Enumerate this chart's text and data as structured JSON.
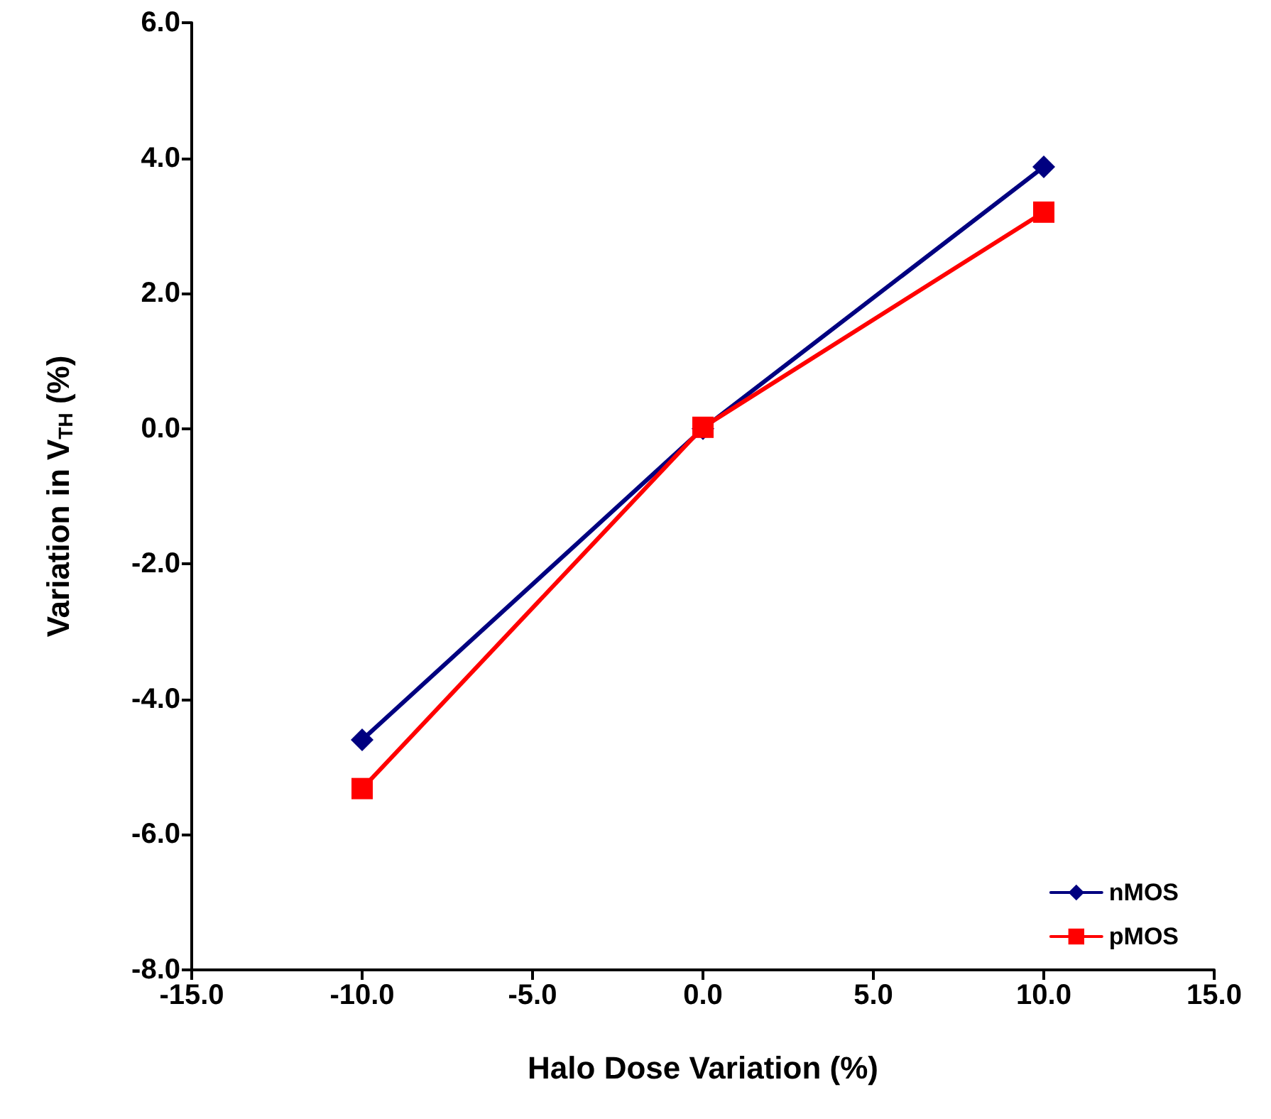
{
  "chart_data": {
    "type": "line",
    "xlabel": "Halo Dose Variation (%)",
    "ylabel": "Variation in V$_{TH}$ (%)",
    "xlim": [
      -15,
      15
    ],
    "xticks": [
      {
        "value": -15,
        "label": "-15.0"
      },
      {
        "value": -10,
        "label": "-10.0"
      },
      {
        "value": -5,
        "label": "-5.0"
      },
      {
        "value": 0,
        "label": "0.0"
      },
      {
        "value": 5,
        "label": "5.0"
      },
      {
        "value": 10,
        "label": "10.0"
      },
      {
        "value": 15,
        "label": "15.0"
      }
    ],
    "ylim": [
      -8,
      6
    ],
    "yticks": [
      {
        "value": -8,
        "label": "-8.0"
      },
      {
        "value": -6,
        "label": "-6.0"
      },
      {
        "value": -4,
        "label": "-4.0"
      },
      {
        "value": -2,
        "label": "-2.0"
      },
      {
        "value": 0,
        "label": "0.0"
      },
      {
        "value": 2,
        "label": "2.0"
      },
      {
        "value": 4,
        "label": "4.0"
      },
      {
        "value": 6,
        "label": "6.0"
      }
    ],
    "x": [
      -10,
      0,
      10
    ],
    "series": [
      {
        "name": "nMOS",
        "color": "#000080",
        "marker": "diamond",
        "values": [
          -4.6,
          0.0,
          3.87
        ]
      },
      {
        "name": "pMOS",
        "color": "#ff0000",
        "marker": "square",
        "values": [
          -5.32,
          0.02,
          3.2
        ]
      }
    ],
    "grid": false,
    "legend": "bottom right",
    "line_style": "solid"
  }
}
